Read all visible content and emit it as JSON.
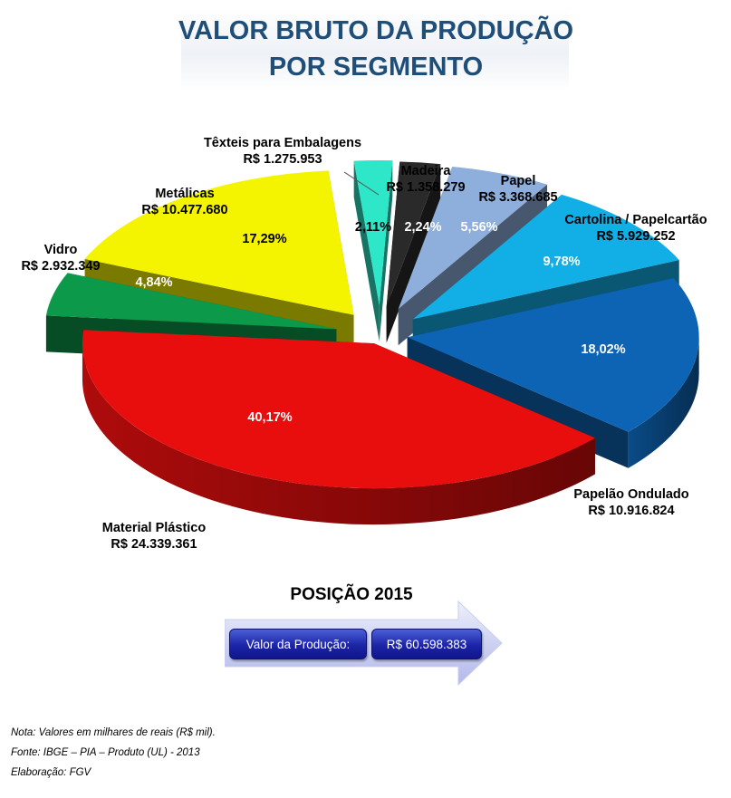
{
  "title_line1": "VALOR BRUTO DA PRODUÇÃO",
  "title_line2": "POR SEGMENTO",
  "chart_data": {
    "type": "pie",
    "title": "VALOR BRUTO DA PRODUÇÃO POR SEGMENTO",
    "slices": [
      {
        "name": "Têxteis para Embalagens",
        "value_label": "R$ 1.275.953",
        "value": 1275953,
        "percent": 2.11,
        "percent_label": "2,11%",
        "color": "#2ee6c8"
      },
      {
        "name": "Madeira",
        "value_label": "R$ 1.358.279",
        "value": 1358279,
        "percent": 2.24,
        "percent_label": "2,24%",
        "color": "#2a2a2a"
      },
      {
        "name": "Papel",
        "value_label": "R$ 3.368.685",
        "value": 3368685,
        "percent": 5.56,
        "percent_label": "5,56%",
        "color": "#8eaedb"
      },
      {
        "name": "Cartolina / Papelcartão",
        "value_label": "R$ 5.929.252",
        "value": 5929252,
        "percent": 9.78,
        "percent_label": "9,78%",
        "color": "#12aee6"
      },
      {
        "name": "Papelão Ondulado",
        "value_label": "R$ 10.916.824",
        "value": 10916824,
        "percent": 18.02,
        "percent_label": "18,02%",
        "color": "#0d64b4"
      },
      {
        "name": "Material Plástico",
        "value_label": "R$ 24.339.361",
        "value": 24339361,
        "percent": 40.17,
        "percent_label": "40,17%",
        "color": "#e80e0e"
      },
      {
        "name": "Vidro",
        "value_label": "R$ 2.932.349",
        "value": 2932349,
        "percent": 4.84,
        "percent_label": "4,84%",
        "color": "#0c9a4a"
      },
      {
        "name": "Metálicas",
        "value_label": "R$ 10.477.680",
        "value": 10477680,
        "percent": 17.29,
        "percent_label": "17,29%",
        "color": "#f4f400"
      }
    ]
  },
  "position": {
    "title": "POSIÇÃO 2015",
    "label": "Valor da Produção:",
    "value": "R$ 60.598.383"
  },
  "notes": {
    "note": "Nota: Valores  em milhares  de reais (R$ mil).",
    "source": "Fonte: IBGE – PIA – Produto  (UL) - 2013",
    "credit": "Elaboração:  FGV"
  }
}
